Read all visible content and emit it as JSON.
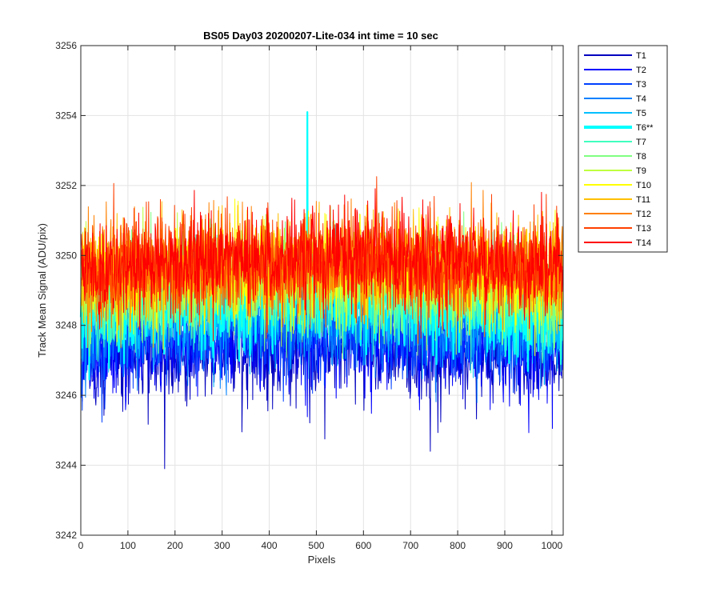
{
  "chart_data": {
    "type": "line",
    "title": "BS05 Day03 20200207-Lite-034 int time = 10 sec",
    "xlabel": "Pixels",
    "ylabel": "Track Mean Signal (ADU/pix)",
    "xlim": [
      0,
      1024
    ],
    "ylim": [
      3242,
      3256
    ],
    "xticks": [
      0,
      100,
      200,
      300,
      400,
      500,
      600,
      700,
      800,
      900,
      1000
    ],
    "yticks": [
      3242,
      3244,
      3246,
      3248,
      3250,
      3252,
      3254,
      3256
    ],
    "grid": true,
    "legend_position": "outside-right",
    "num_points": 1024,
    "series": [
      {
        "name": "T1",
        "color": "#0000bf",
        "mean": 3247.0,
        "spread": 0.7,
        "bold": false
      },
      {
        "name": "T2",
        "color": "#0000ff",
        "mean": 3247.3,
        "spread": 0.7,
        "bold": false
      },
      {
        "name": "T3",
        "color": "#0040ff",
        "mean": 3247.6,
        "spread": 0.7,
        "bold": false
      },
      {
        "name": "T4",
        "color": "#0080ff",
        "mean": 3247.9,
        "spread": 0.7,
        "bold": false
      },
      {
        "name": "T5",
        "color": "#00bfff",
        "mean": 3248.2,
        "spread": 0.7,
        "bold": false
      },
      {
        "name": "T6**",
        "color": "#00ffff",
        "mean": 3248.5,
        "spread": 0.7,
        "bold": true
      },
      {
        "name": "T7",
        "color": "#40ffbf",
        "mean": 3248.7,
        "spread": 0.7,
        "bold": false
      },
      {
        "name": "T8",
        "color": "#80ff80",
        "mean": 3248.9,
        "spread": 0.7,
        "bold": false
      },
      {
        "name": "T9",
        "color": "#bfff40",
        "mean": 3249.1,
        "spread": 0.7,
        "bold": false
      },
      {
        "name": "T10",
        "color": "#ffff00",
        "mean": 3249.3,
        "spread": 0.7,
        "bold": false
      },
      {
        "name": "T11",
        "color": "#ffbf00",
        "mean": 3249.4,
        "spread": 0.7,
        "bold": false
      },
      {
        "name": "T12",
        "color": "#ff8000",
        "mean": 3249.5,
        "spread": 0.7,
        "bold": false
      },
      {
        "name": "T13",
        "color": "#ff4000",
        "mean": 3249.6,
        "spread": 0.7,
        "bold": false
      },
      {
        "name": "T14",
        "color": "#ff0000",
        "mean": 3249.6,
        "spread": 0.7,
        "bold": false
      }
    ],
    "annotations": [
      {
        "series": "T6**",
        "x": 481,
        "y": 3254.1
      },
      {
        "series": "T1",
        "x": 178,
        "y": 3243.9
      },
      {
        "series": "T1",
        "x": 742,
        "y": 3244.4
      }
    ]
  }
}
